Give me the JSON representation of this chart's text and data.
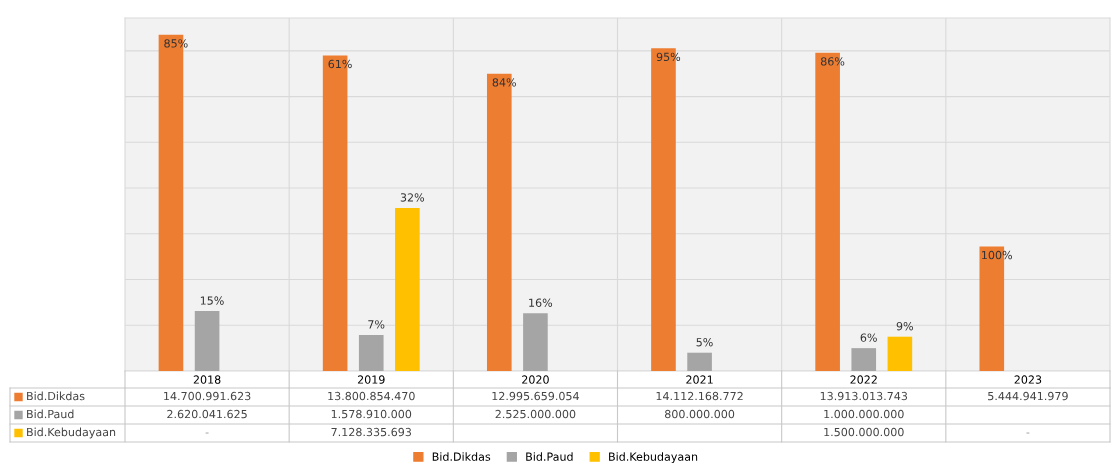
{
  "chart_data": {
    "type": "bar",
    "categories": [
      "2018",
      "2019",
      "2020",
      "2021",
      "2022",
      "2023"
    ],
    "series": [
      {
        "name": "Bid.Dikdas",
        "color": "#ed7d31",
        "values": [
          14700991623,
          13800854470,
          12995659054,
          14112168772,
          13913013743,
          5444941979
        ],
        "value_labels": [
          "14.700.991.623",
          "13.800.854.470",
          "12.995.659.054",
          "14.112.168.772",
          "13.913.013.743",
          "5.444.941.979"
        ]
      },
      {
        "name": "Bid.Paud",
        "color": "#a5a5a5",
        "values": [
          2620041625,
          1578910000,
          2525000000,
          800000000,
          1000000000,
          null
        ],
        "value_labels": [
          "2.620.041.625",
          "1.578.910.000",
          "2.525.000.000",
          "800.000.000",
          "1.000.000.000",
          null
        ]
      },
      {
        "name": "Bid.Kebudayaan",
        "color": "#ffc000",
        "values": [
          null,
          7128335693,
          null,
          null,
          1500000000,
          null
        ],
        "value_labels": [
          "-",
          "7.128.335.693",
          null,
          null,
          "1.500.000.000",
          "-"
        ]
      }
    ],
    "annotations": [
      "85%",
      "61%",
      "84%",
      "95%",
      "86%",
      "100%",
      "15%",
      "7%",
      "16%",
      "5%",
      "6%",
      "32%",
      "9%"
    ],
    "tick_labels": "x",
    "grid": "y",
    "legend": "bottom"
  }
}
